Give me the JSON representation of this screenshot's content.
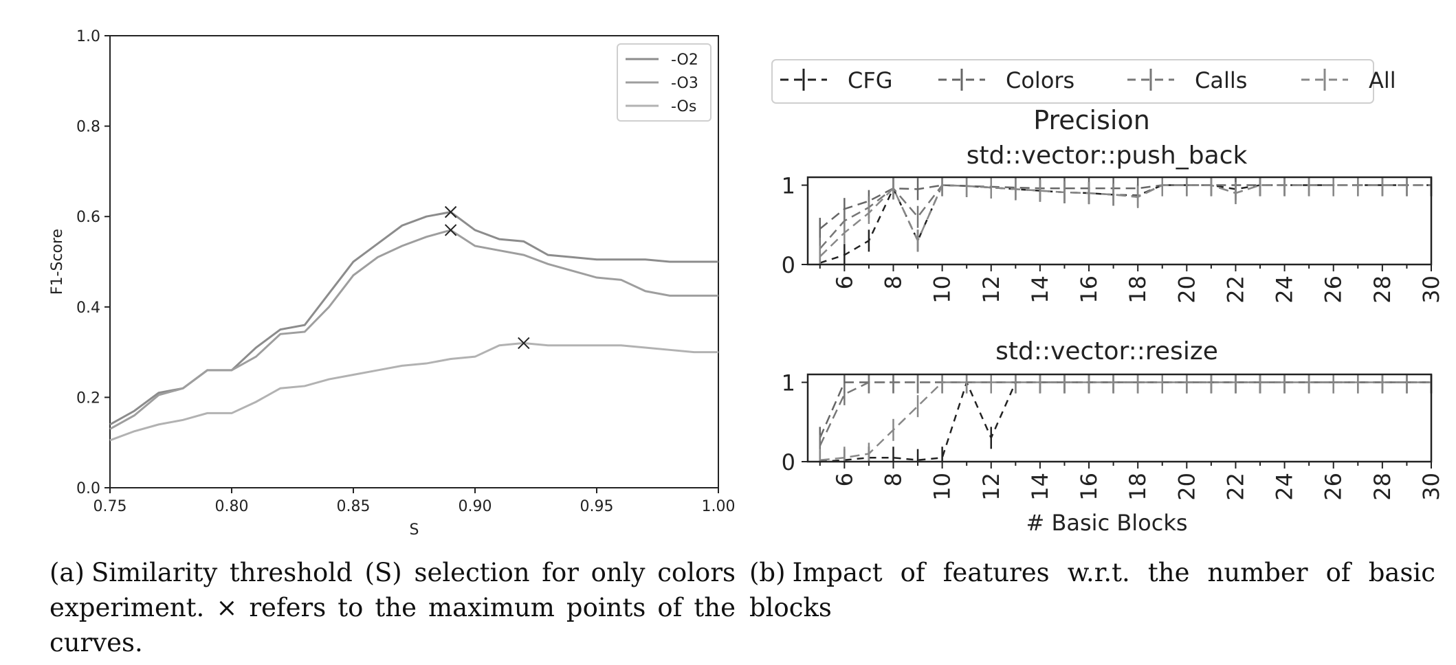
{
  "figure": {
    "panels": [
      "(a)",
      "(b)"
    ],
    "caption_a": "Similarity threshold (S) selection for only colors experiment. × refers to the maximum points of the curves.",
    "caption_b": "Impact of features w.r.t. the number of basic blocks"
  },
  "chart_data": [
    {
      "type": "line",
      "title": "",
      "xlabel": "S",
      "ylabel": "F1-Score",
      "xlim": [
        0.75,
        1.0
      ],
      "ylim": [
        0.0,
        1.0
      ],
      "xticks": [
        "0.75",
        "0.80",
        "0.85",
        "0.90",
        "0.95",
        "1.00"
      ],
      "yticks": [
        "0.0",
        "0.2",
        "0.4",
        "0.6",
        "0.8",
        "1.0"
      ],
      "grid": false,
      "legend": "top-right",
      "x": [
        0.75,
        0.76,
        0.77,
        0.78,
        0.79,
        0.8,
        0.81,
        0.82,
        0.83,
        0.84,
        0.85,
        0.86,
        0.87,
        0.88,
        0.89,
        0.9,
        0.91,
        0.92,
        0.93,
        0.94,
        0.95,
        0.96,
        0.97,
        0.98,
        0.99,
        1.0
      ],
      "series": [
        {
          "name": "-O2",
          "color": "#8c8c8c",
          "values": [
            0.14,
            0.17,
            0.21,
            0.22,
            0.26,
            0.26,
            0.31,
            0.35,
            0.36,
            0.43,
            0.5,
            0.54,
            0.58,
            0.6,
            0.61,
            0.57,
            0.55,
            0.545,
            0.515,
            0.51,
            0.505,
            0.505,
            0.505,
            0.5,
            0.5,
            0.5
          ],
          "max": [
            0.89,
            0.61
          ]
        },
        {
          "name": "-O3",
          "color": "#9e9e9e",
          "values": [
            0.13,
            0.16,
            0.205,
            0.22,
            0.26,
            0.26,
            0.29,
            0.34,
            0.345,
            0.4,
            0.47,
            0.51,
            0.535,
            0.555,
            0.57,
            0.535,
            0.525,
            0.515,
            0.495,
            0.48,
            0.465,
            0.46,
            0.435,
            0.425,
            0.425,
            0.425
          ],
          "max": [
            0.89,
            0.57
          ]
        },
        {
          "name": "-Os",
          "color": "#b2b2b2",
          "values": [
            0.105,
            0.125,
            0.14,
            0.15,
            0.165,
            0.165,
            0.19,
            0.22,
            0.225,
            0.24,
            0.25,
            0.26,
            0.27,
            0.275,
            0.285,
            0.29,
            0.315,
            0.32,
            0.315,
            0.315,
            0.315,
            0.315,
            0.31,
            0.305,
            0.3,
            0.3
          ],
          "max": [
            0.92,
            0.32
          ]
        }
      ]
    },
    {
      "type": "line",
      "title": "Precision",
      "legend": "top",
      "legend_entries": [
        "CFG",
        "Colors",
        "Calls",
        "All"
      ],
      "series_colors": [
        "#222222",
        "#666666",
        "#777777",
        "#888888"
      ],
      "xlabel": "# Basic Blocks",
      "subplots": [
        {
          "title": "std::vector::push_back",
          "xlim": [
            4.5,
            30
          ],
          "ylim": [
            0,
            1.1
          ],
          "xticks": [
            6,
            8,
            10,
            12,
            14,
            16,
            18,
            20,
            22,
            24,
            26,
            28,
            30
          ],
          "yticks": [
            0,
            1
          ],
          "x": [
            5,
            6,
            7,
            8,
            9,
            10,
            11,
            12,
            13,
            14,
            15,
            16,
            17,
            18,
            19,
            20,
            21,
            22,
            23,
            24,
            25,
            26,
            27,
            28,
            29,
            30
          ],
          "series": [
            {
              "name": "CFG",
              "values": [
                0.02,
                0.12,
                0.3,
                0.96,
                0.3,
                1.0,
                0.99,
                0.97,
                0.95,
                0.93,
                0.91,
                0.9,
                0.88,
                0.87,
                1.0,
                1.0,
                1.0,
                0.95,
                1.0,
                1.0,
                1.0,
                1.0,
                1.0,
                1.0,
                1.0,
                1.0
              ]
            },
            {
              "name": "Colors",
              "values": [
                0.45,
                0.7,
                0.8,
                0.96,
                0.95,
                1.0,
                0.99,
                0.98,
                0.97,
                0.96,
                0.96,
                0.96,
                0.96,
                0.96,
                1.0,
                1.0,
                1.0,
                1.0,
                1.0,
                1.0,
                1.0,
                1.0,
                1.0,
                1.0,
                1.0,
                1.0
              ]
            },
            {
              "name": "Calls",
              "values": [
                0.2,
                0.55,
                0.72,
                0.96,
                0.6,
                1.0,
                0.99,
                0.97,
                0.95,
                0.93,
                0.91,
                0.9,
                0.88,
                0.86,
                1.0,
                1.0,
                1.0,
                0.9,
                1.0,
                1.0,
                1.0,
                1.0,
                1.0,
                1.0,
                1.0,
                1.0
              ]
            },
            {
              "name": "All",
              "values": [
                0.1,
                0.4,
                0.65,
                0.96,
                0.3,
                1.0,
                0.99,
                0.97,
                0.95,
                0.93,
                0.91,
                0.9,
                0.88,
                0.85,
                1.0,
                1.0,
                1.0,
                0.9,
                1.0,
                1.0,
                1.0,
                1.0,
                1.0,
                1.0,
                1.0,
                1.0
              ]
            }
          ]
        },
        {
          "title": "std::vector::resize",
          "xlim": [
            4.5,
            30
          ],
          "ylim": [
            0,
            1.1
          ],
          "xticks": [
            6,
            8,
            10,
            12,
            14,
            16,
            18,
            20,
            22,
            24,
            26,
            28,
            30
          ],
          "yticks": [
            0,
            1
          ],
          "x": [
            5,
            6,
            7,
            8,
            9,
            10,
            11,
            12,
            13,
            14,
            15,
            16,
            17,
            18,
            19,
            20,
            21,
            22,
            23,
            24,
            25,
            26,
            27,
            28,
            29,
            30
          ],
          "series": [
            {
              "name": "CFG",
              "values": [
                0.0,
                0.02,
                0.05,
                0.05,
                0.02,
                0.05,
                1.0,
                0.3,
                1.0,
                1.0,
                1.0,
                1.0,
                1.0,
                1.0,
                1.0,
                1.0,
                1.0,
                1.0,
                1.0,
                1.0,
                1.0,
                1.0,
                1.0,
                1.0,
                1.0,
                1.0
              ]
            },
            {
              "name": "Colors",
              "values": [
                0.3,
                1.0,
                1.0,
                1.0,
                1.0,
                1.0,
                1.0,
                1.0,
                1.0,
                1.0,
                1.0,
                1.0,
                1.0,
                1.0,
                1.0,
                1.0,
                1.0,
                1.0,
                1.0,
                1.0,
                1.0,
                1.0,
                1.0,
                1.0,
                1.0,
                1.0
              ]
            },
            {
              "name": "Calls",
              "values": [
                0.2,
                0.85,
                1.0,
                1.0,
                1.0,
                1.0,
                1.0,
                1.0,
                1.0,
                1.0,
                1.0,
                1.0,
                1.0,
                1.0,
                1.0,
                1.0,
                1.0,
                1.0,
                1.0,
                1.0,
                1.0,
                1.0,
                1.0,
                1.0,
                1.0,
                1.0
              ]
            },
            {
              "name": "All",
              "values": [
                0.02,
                0.05,
                0.1,
                0.4,
                0.7,
                1.0,
                1.0,
                1.0,
                1.0,
                1.0,
                1.0,
                1.0,
                1.0,
                1.0,
                1.0,
                1.0,
                1.0,
                1.0,
                1.0,
                1.0,
                1.0,
                1.0,
                1.0,
                1.0,
                1.0,
                1.0
              ]
            }
          ]
        }
      ]
    }
  ]
}
